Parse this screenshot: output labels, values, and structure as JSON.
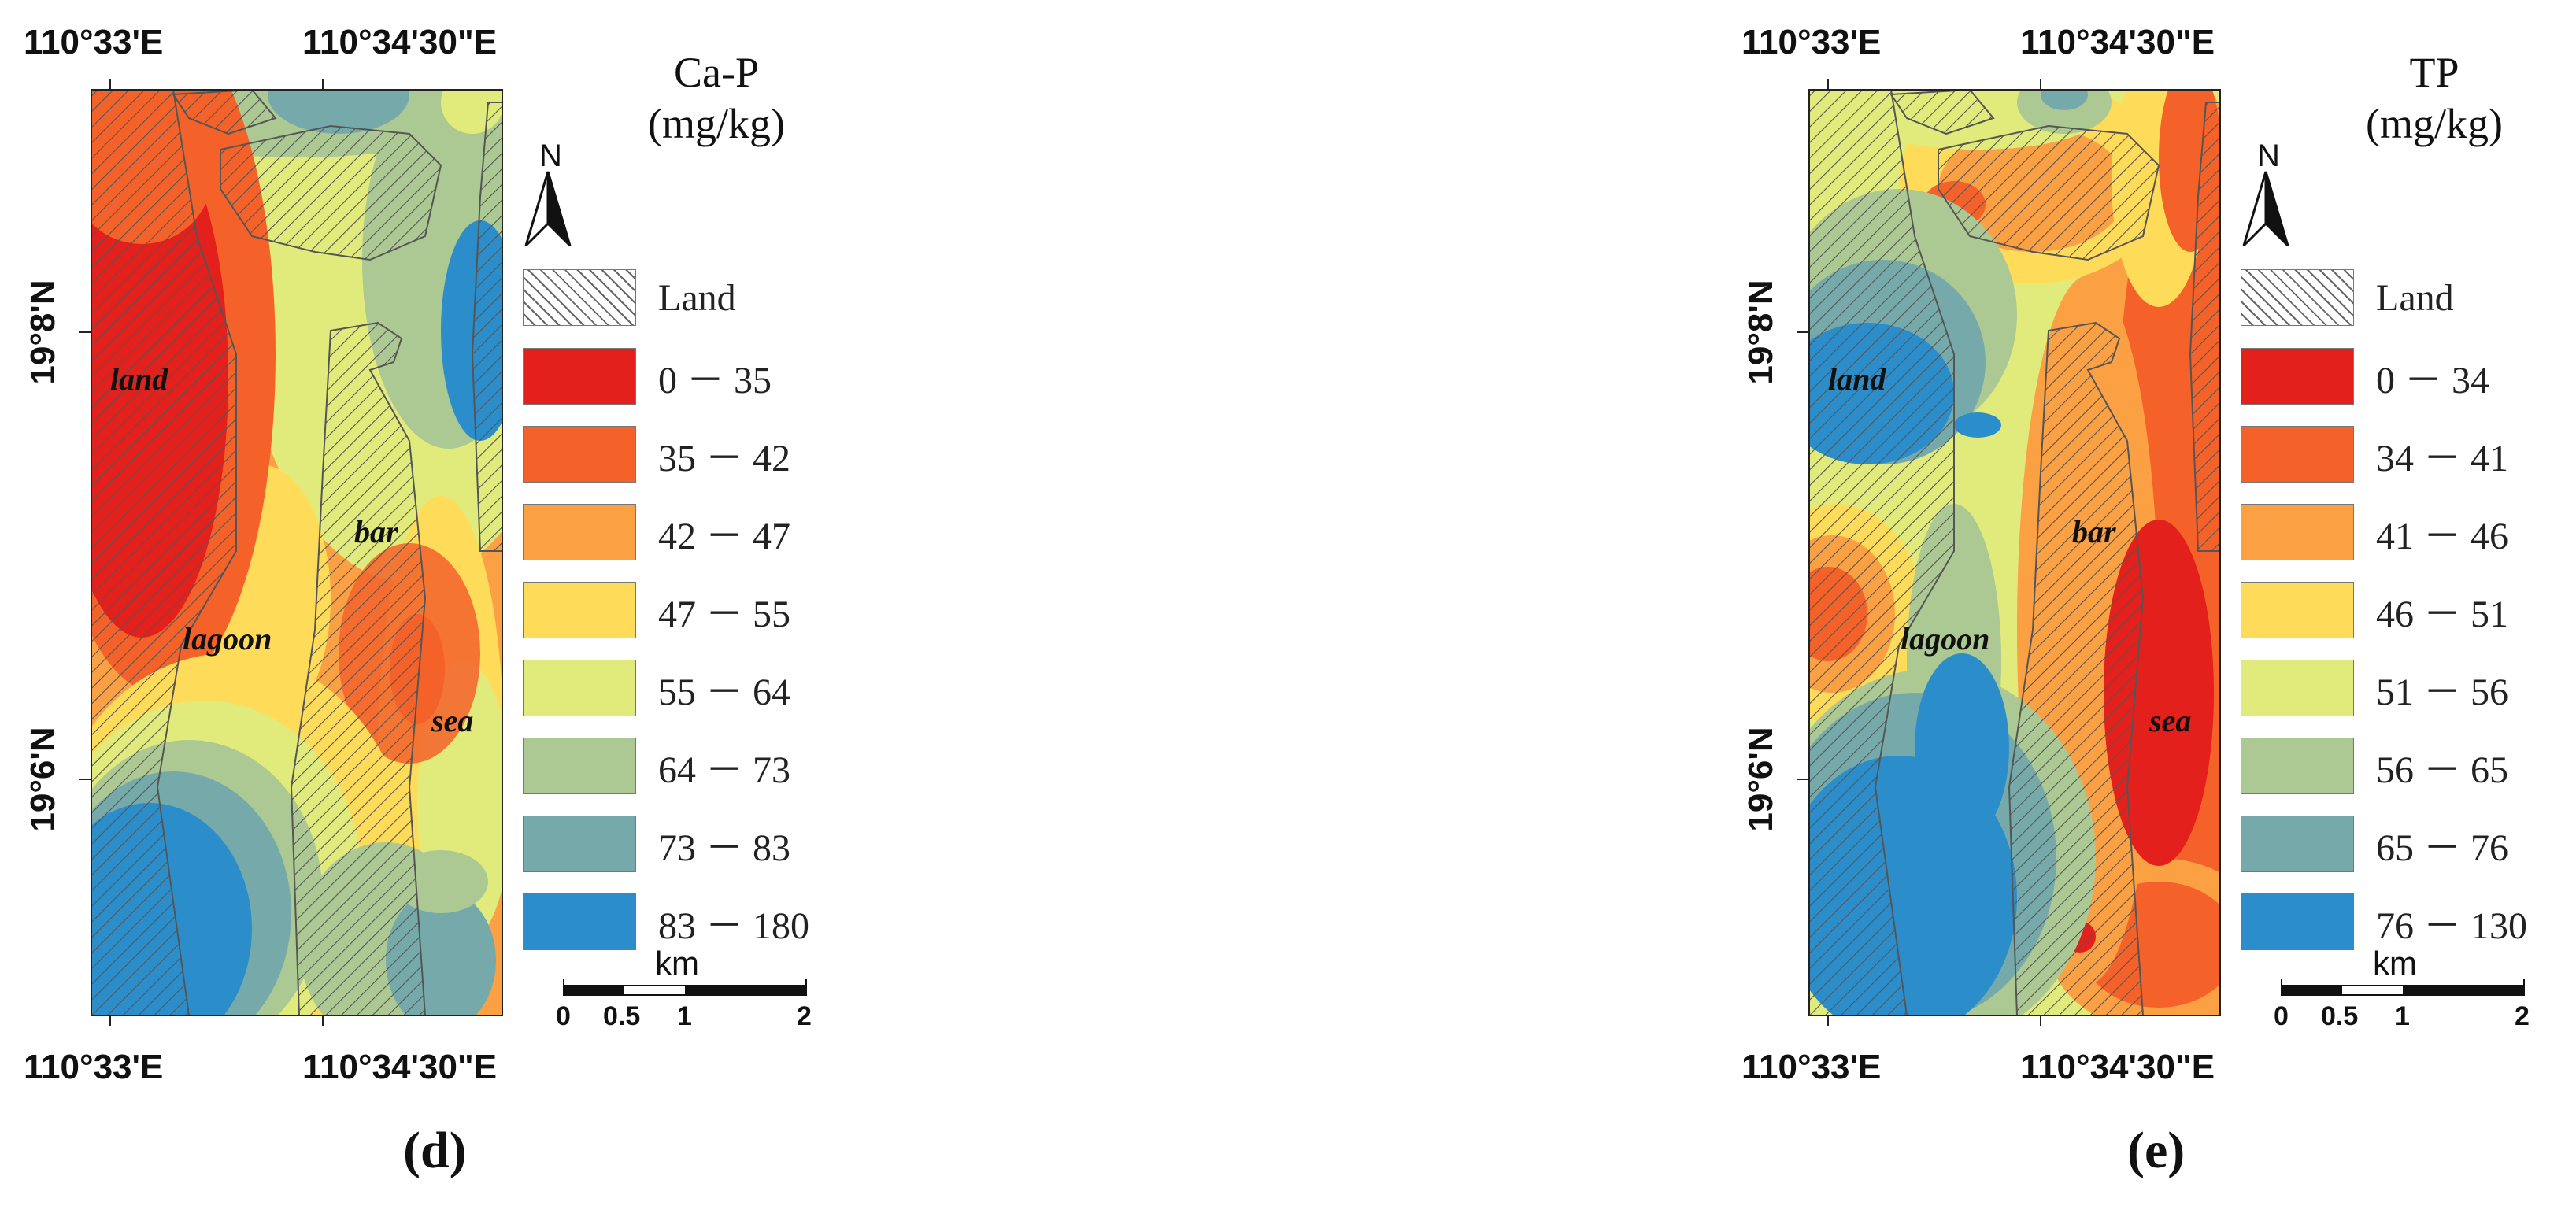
{
  "panels": [
    {
      "id": "d",
      "panel_label": "(d)",
      "title": [
        "Ca-P",
        "(mg/kg)"
      ],
      "top_coords": [
        "110°33'E",
        "110°34'30\"E"
      ],
      "bottom_coords": [
        "110°33'E",
        "110°34'30\"E"
      ],
      "lat_coords": [
        "19°8'N",
        "19°6'N"
      ],
      "north_label": "N",
      "legend": [
        {
          "label": "Land",
          "type": "hatch"
        },
        {
          "label": "0 －  35",
          "color": "#e3201c"
        },
        {
          "label": "35 －  42",
          "color": "#f4622a"
        },
        {
          "label": "42 －  47",
          "color": "#fba043"
        },
        {
          "label": "47 －  55",
          "color": "#fedc5a"
        },
        {
          "label": "55 －  64",
          "color": "#e1eb7c"
        },
        {
          "label": "64 －  73",
          "color": "#acc893"
        },
        {
          "label": "73 －  83",
          "color": "#76aaaa"
        },
        {
          "label": "83 －  180",
          "color": "#2b8ecb"
        }
      ],
      "region_labels": {
        "land": "land",
        "bar": "bar",
        "lagoon": "lagoon",
        "sea": "sea"
      },
      "scale": {
        "unit": "km",
        "ticks": [
          "0",
          "0.5",
          "1",
          "2"
        ]
      }
    },
    {
      "id": "e",
      "panel_label": "(e)",
      "title": [
        "TP",
        "(mg/kg)"
      ],
      "top_coords": [
        "110°33'E",
        "110°34'30\"E"
      ],
      "bottom_coords": [
        "110°33'E",
        "110°34'30\"E"
      ],
      "lat_coords": [
        "19°8'N",
        "19°6'N"
      ],
      "north_label": "N",
      "legend": [
        {
          "label": "Land",
          "type": "hatch"
        },
        {
          "label": "0 －  34",
          "color": "#e3201c"
        },
        {
          "label": "34 －  41",
          "color": "#f4622a"
        },
        {
          "label": "41 －  46",
          "color": "#fba043"
        },
        {
          "label": "46 －  51",
          "color": "#fedc5a"
        },
        {
          "label": "51 －  56",
          "color": "#e1eb7c"
        },
        {
          "label": "56 －  65",
          "color": "#acc893"
        },
        {
          "label": "65 －  76",
          "color": "#76aaaa"
        },
        {
          "label": "76 －  130",
          "color": "#2b8ecb"
        }
      ],
      "region_labels": {
        "land": "land",
        "bar": "bar",
        "lagoon": "lagoon",
        "sea": "sea"
      },
      "scale": {
        "unit": "km",
        "ticks": [
          "0",
          "0.5",
          "1",
          "2"
        ]
      }
    }
  ]
}
